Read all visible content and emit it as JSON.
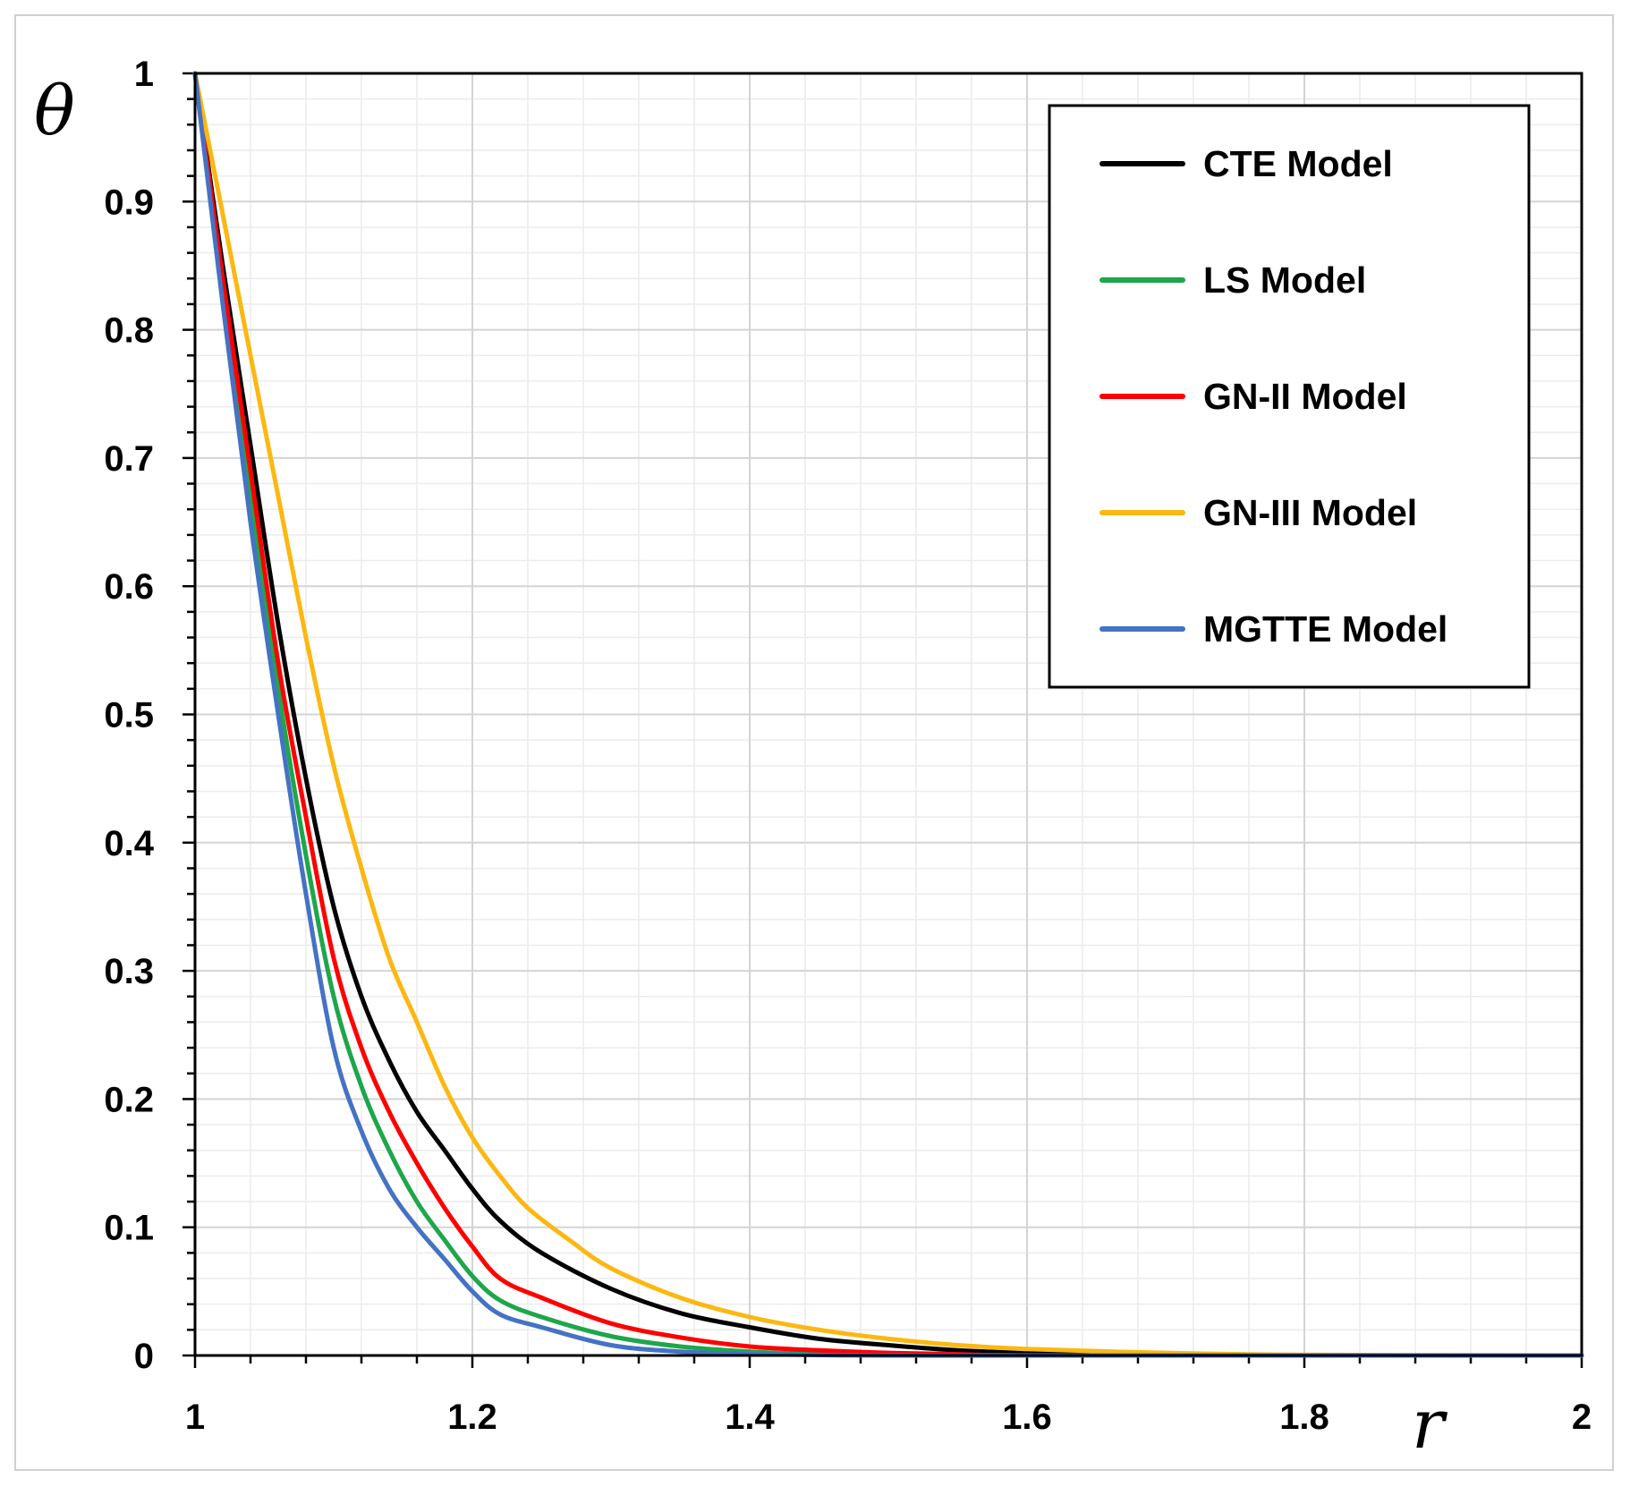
{
  "chart_data": {
    "type": "line",
    "title": "",
    "xlabel": "r",
    "ylabel": "θ",
    "xlim": [
      1,
      2
    ],
    "ylim": [
      0,
      1
    ],
    "xticks": [
      "1",
      "1.2",
      "1.4",
      "1.6",
      "1.8",
      "2"
    ],
    "yticks": [
      "0",
      "0.1",
      "0.2",
      "0.3",
      "0.4",
      "0.5",
      "0.6",
      "0.7",
      "0.8",
      "0.9",
      "1"
    ],
    "grid": true,
    "legend_position": "top-right",
    "series": [
      {
        "name": "CTE Model",
        "color": "#000000",
        "x": [
          1.0,
          1.02,
          1.04,
          1.06,
          1.08,
          1.1,
          1.12,
          1.14,
          1.16,
          1.18,
          1.2,
          1.22,
          1.25,
          1.3,
          1.35,
          1.4,
          1.45,
          1.5,
          1.55,
          1.6,
          1.7,
          1.8,
          2.0
        ],
        "y": [
          1.0,
          0.85,
          0.71,
          0.57,
          0.45,
          0.35,
          0.28,
          0.23,
          0.19,
          0.16,
          0.13,
          0.105,
          0.08,
          0.052,
          0.033,
          0.022,
          0.013,
          0.008,
          0.004,
          0.002,
          0.0005,
          0.0,
          0.0
        ]
      },
      {
        "name": "LS Model",
        "color": "#1ea64b",
        "x": [
          1.0,
          1.02,
          1.04,
          1.06,
          1.08,
          1.1,
          1.12,
          1.14,
          1.16,
          1.18,
          1.2,
          1.22,
          1.25,
          1.3,
          1.35,
          1.4,
          1.45,
          1.5,
          1.6,
          1.8,
          2.0
        ],
        "y": [
          1.0,
          0.83,
          0.67,
          0.52,
          0.39,
          0.28,
          0.21,
          0.16,
          0.12,
          0.09,
          0.062,
          0.043,
          0.03,
          0.015,
          0.007,
          0.003,
          0.001,
          0.0005,
          0.0,
          0.0,
          0.0
        ]
      },
      {
        "name": "GN-II Model",
        "color": "#ff0000",
        "x": [
          1.0,
          1.02,
          1.04,
          1.06,
          1.08,
          1.1,
          1.12,
          1.14,
          1.16,
          1.18,
          1.2,
          1.22,
          1.25,
          1.3,
          1.35,
          1.4,
          1.45,
          1.5,
          1.55,
          1.6,
          1.8,
          2.0
        ],
        "y": [
          1.0,
          0.84,
          0.69,
          0.54,
          0.42,
          0.31,
          0.24,
          0.19,
          0.15,
          0.115,
          0.085,
          0.06,
          0.045,
          0.025,
          0.014,
          0.007,
          0.004,
          0.002,
          0.001,
          0.0,
          0.0,
          0.0
        ]
      },
      {
        "name": "GN-III Model",
        "color": "#fbb812",
        "x": [
          1.0,
          1.02,
          1.04,
          1.06,
          1.08,
          1.1,
          1.12,
          1.14,
          1.16,
          1.18,
          1.2,
          1.22,
          1.24,
          1.27,
          1.3,
          1.35,
          1.4,
          1.45,
          1.5,
          1.55,
          1.6,
          1.7,
          1.8,
          2.0
        ],
        "y": [
          1.0,
          0.89,
          0.78,
          0.67,
          0.56,
          0.46,
          0.38,
          0.31,
          0.26,
          0.21,
          0.17,
          0.14,
          0.115,
          0.09,
          0.068,
          0.045,
          0.03,
          0.02,
          0.013,
          0.008,
          0.005,
          0.002,
          0.0005,
          0.0
        ]
      },
      {
        "name": "MGTTE Model",
        "color": "#4472c4",
        "x": [
          1.0,
          1.02,
          1.04,
          1.06,
          1.08,
          1.1,
          1.12,
          1.14,
          1.16,
          1.18,
          1.2,
          1.22,
          1.25,
          1.3,
          1.35,
          1.4,
          1.5,
          1.6,
          1.8,
          2.0
        ],
        "y": [
          1.0,
          0.82,
          0.65,
          0.5,
          0.36,
          0.24,
          0.175,
          0.13,
          0.1,
          0.075,
          0.05,
          0.032,
          0.022,
          0.008,
          0.003,
          0.001,
          0.0,
          0.0,
          0.0,
          0.0
        ]
      }
    ]
  }
}
